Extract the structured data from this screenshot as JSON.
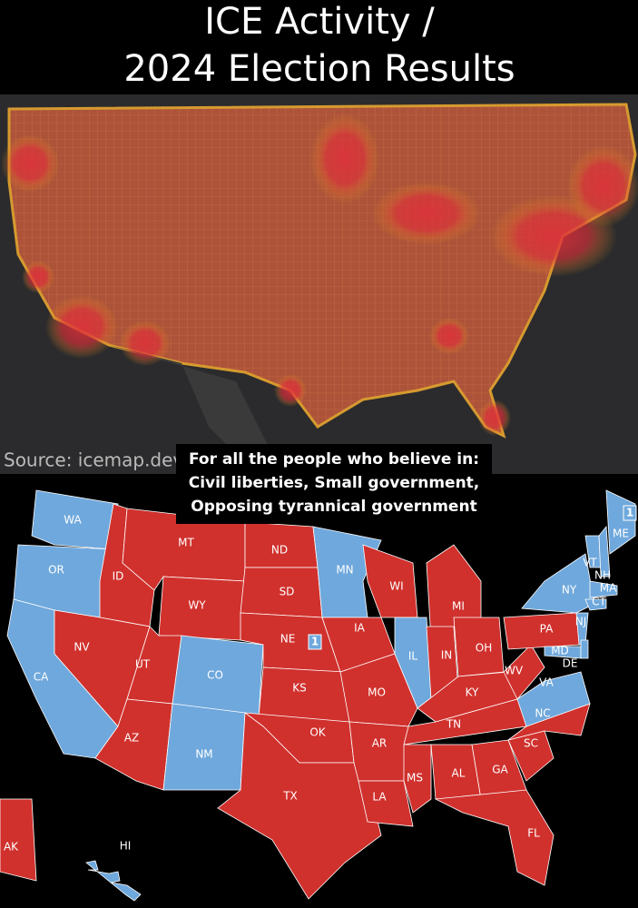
{
  "title": [
    "ICE Activity /",
    "2024 Election Results"
  ],
  "source": "Source: icemap.dev",
  "caption": [
    "For all the people who believe in:",
    "Civil liberties, Small government,",
    "Opposing tyrannical government"
  ],
  "states": [
    {
      "label": "WA",
      "color": "#6fa8dc"
    },
    {
      "label": "OR",
      "color": "#6fa8dc"
    },
    {
      "label": "CA",
      "color": "#6fa8dc"
    },
    {
      "label": "ID",
      "color": "#d0312d"
    },
    {
      "label": "NV",
      "color": "#d0312d"
    },
    {
      "label": "MT",
      "color": "#d0312d"
    },
    {
      "label": "WY",
      "color": "#d0312d"
    },
    {
      "label": "UT",
      "color": "#d0312d"
    },
    {
      "label": "AZ",
      "color": "#d0312d"
    },
    {
      "label": "CO",
      "color": "#6fa8dc"
    },
    {
      "label": "NM",
      "color": "#6fa8dc"
    },
    {
      "label": "ND",
      "color": "#d0312d"
    },
    {
      "label": "SD",
      "color": "#d0312d"
    },
    {
      "label": "NE",
      "color": "#d0312d"
    },
    {
      "label": "KS",
      "color": "#d0312d"
    },
    {
      "label": "OK",
      "color": "#d0312d"
    },
    {
      "label": "TX",
      "color": "#d0312d"
    },
    {
      "label": "MN",
      "color": "#6fa8dc"
    },
    {
      "label": "IA",
      "color": "#d0312d"
    },
    {
      "label": "MO",
      "color": "#d0312d"
    },
    {
      "label": "AR",
      "color": "#d0312d"
    },
    {
      "label": "LA",
      "color": "#d0312d"
    },
    {
      "label": "WI",
      "color": "#d0312d"
    },
    {
      "label": "IL",
      "color": "#6fa8dc"
    },
    {
      "label": "MI",
      "color": "#d0312d"
    },
    {
      "label": "IN",
      "color": "#d0312d"
    },
    {
      "label": "OH",
      "color": "#d0312d"
    },
    {
      "label": "KY",
      "color": "#d0312d"
    },
    {
      "label": "TN",
      "color": "#d0312d"
    },
    {
      "label": "MS",
      "color": "#d0312d"
    },
    {
      "label": "AL",
      "color": "#d0312d"
    },
    {
      "label": "GA",
      "color": "#d0312d"
    },
    {
      "label": "FL",
      "color": "#d0312d"
    },
    {
      "label": "SC",
      "color": "#d0312d"
    },
    {
      "label": "NC",
      "color": "#d0312d"
    },
    {
      "label": "VA",
      "color": "#6fa8dc"
    },
    {
      "label": "WV",
      "color": "#d0312d"
    },
    {
      "label": "PA",
      "color": "#d0312d"
    },
    {
      "label": "NY",
      "color": "#6fa8dc"
    },
    {
      "label": "VT",
      "color": "#6fa8dc"
    },
    {
      "label": "NH",
      "color": "#6fa8dc"
    },
    {
      "label": "MA",
      "color": "#6fa8dc"
    },
    {
      "label": "CT",
      "color": "#6fa8dc"
    },
    {
      "label": "NJ",
      "color": "#6fa8dc"
    },
    {
      "label": "MD",
      "color": "#6fa8dc"
    },
    {
      "label": "DE",
      "color": "#6fa8dc"
    },
    {
      "label": "ME",
      "color": "#6fa8dc"
    },
    {
      "label": "AK",
      "color": "#d0312d"
    },
    {
      "label": "HI",
      "color": "#6fa8dc"
    }
  ],
  "badges": [
    "1",
    "1"
  ]
}
